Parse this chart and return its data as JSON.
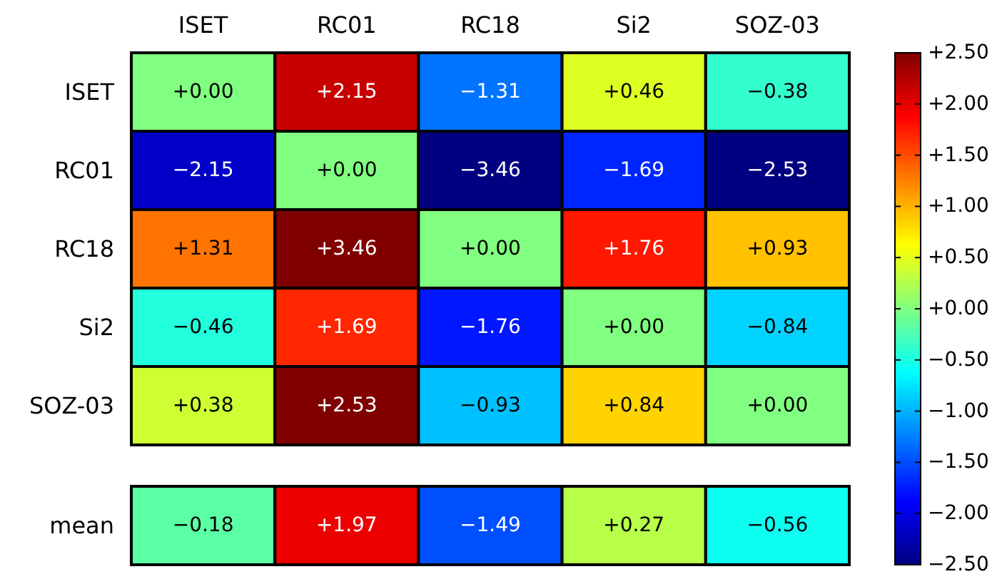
{
  "chart_data": [
    {
      "type": "heatmap",
      "categories": [
        "ISET",
        "RC01",
        "RC18",
        "Si2",
        "SOZ-03"
      ],
      "y_categories": [
        "ISET",
        "RC01",
        "RC18",
        "Si2",
        "SOZ-03"
      ],
      "cells": [
        [
          0.0,
          2.15,
          -1.31,
          0.46,
          -0.38
        ],
        [
          -2.15,
          0.0,
          -3.46,
          -1.69,
          -2.53
        ],
        [
          1.31,
          3.46,
          0.0,
          1.76,
          0.93
        ],
        [
          -0.46,
          1.69,
          -1.76,
          0.0,
          -0.84
        ],
        [
          0.38,
          2.53,
          -0.93,
          0.84,
          0.0
        ]
      ],
      "cell_labels": [
        [
          "+0.00",
          "+2.15",
          "−1.31",
          "+0.46",
          "−0.38"
        ],
        [
          "−2.15",
          "+0.00",
          "−3.46",
          "−1.69",
          "−2.53"
        ],
        [
          "+1.31",
          "+3.46",
          "+0.00",
          "+1.76",
          "+0.93"
        ],
        [
          "−0.46",
          "+1.69",
          "−1.76",
          "+0.00",
          "−0.84"
        ],
        [
          "+0.38",
          "+2.53",
          "−0.93",
          "+0.84",
          "+0.00"
        ]
      ],
      "clim": [
        -2.5,
        2.5
      ],
      "cticks": [
        {
          "value": 2.5,
          "label": "+2.50"
        },
        {
          "value": 2,
          "label": "+2.00"
        },
        {
          "value": 1.5,
          "label": "+1.50"
        },
        {
          "value": 1,
          "label": "+1.00"
        },
        {
          "value": 0.5,
          "label": "+0.50"
        },
        {
          "value": 0,
          "label": "+0.00"
        },
        {
          "value": -0.5,
          "label": "−0.50"
        },
        {
          "value": -1,
          "label": "−1.00"
        },
        {
          "value": -1.5,
          "label": "−1.50"
        },
        {
          "value": -2,
          "label": "−2.00"
        },
        {
          "value": -2.5,
          "label": "−2.50"
        }
      ]
    },
    {
      "type": "heatmap",
      "categories": [
        null,
        null,
        null,
        null,
        null
      ],
      "y_categories": [
        "mean"
      ],
      "cells": [
        [
          -0.18,
          1.97,
          -1.49,
          0.27,
          -0.56
        ]
      ],
      "cell_labels": [
        [
          "−0.18",
          "+1.97",
          "−1.49",
          "+0.27",
          "−0.56"
        ]
      ]
    }
  ]
}
